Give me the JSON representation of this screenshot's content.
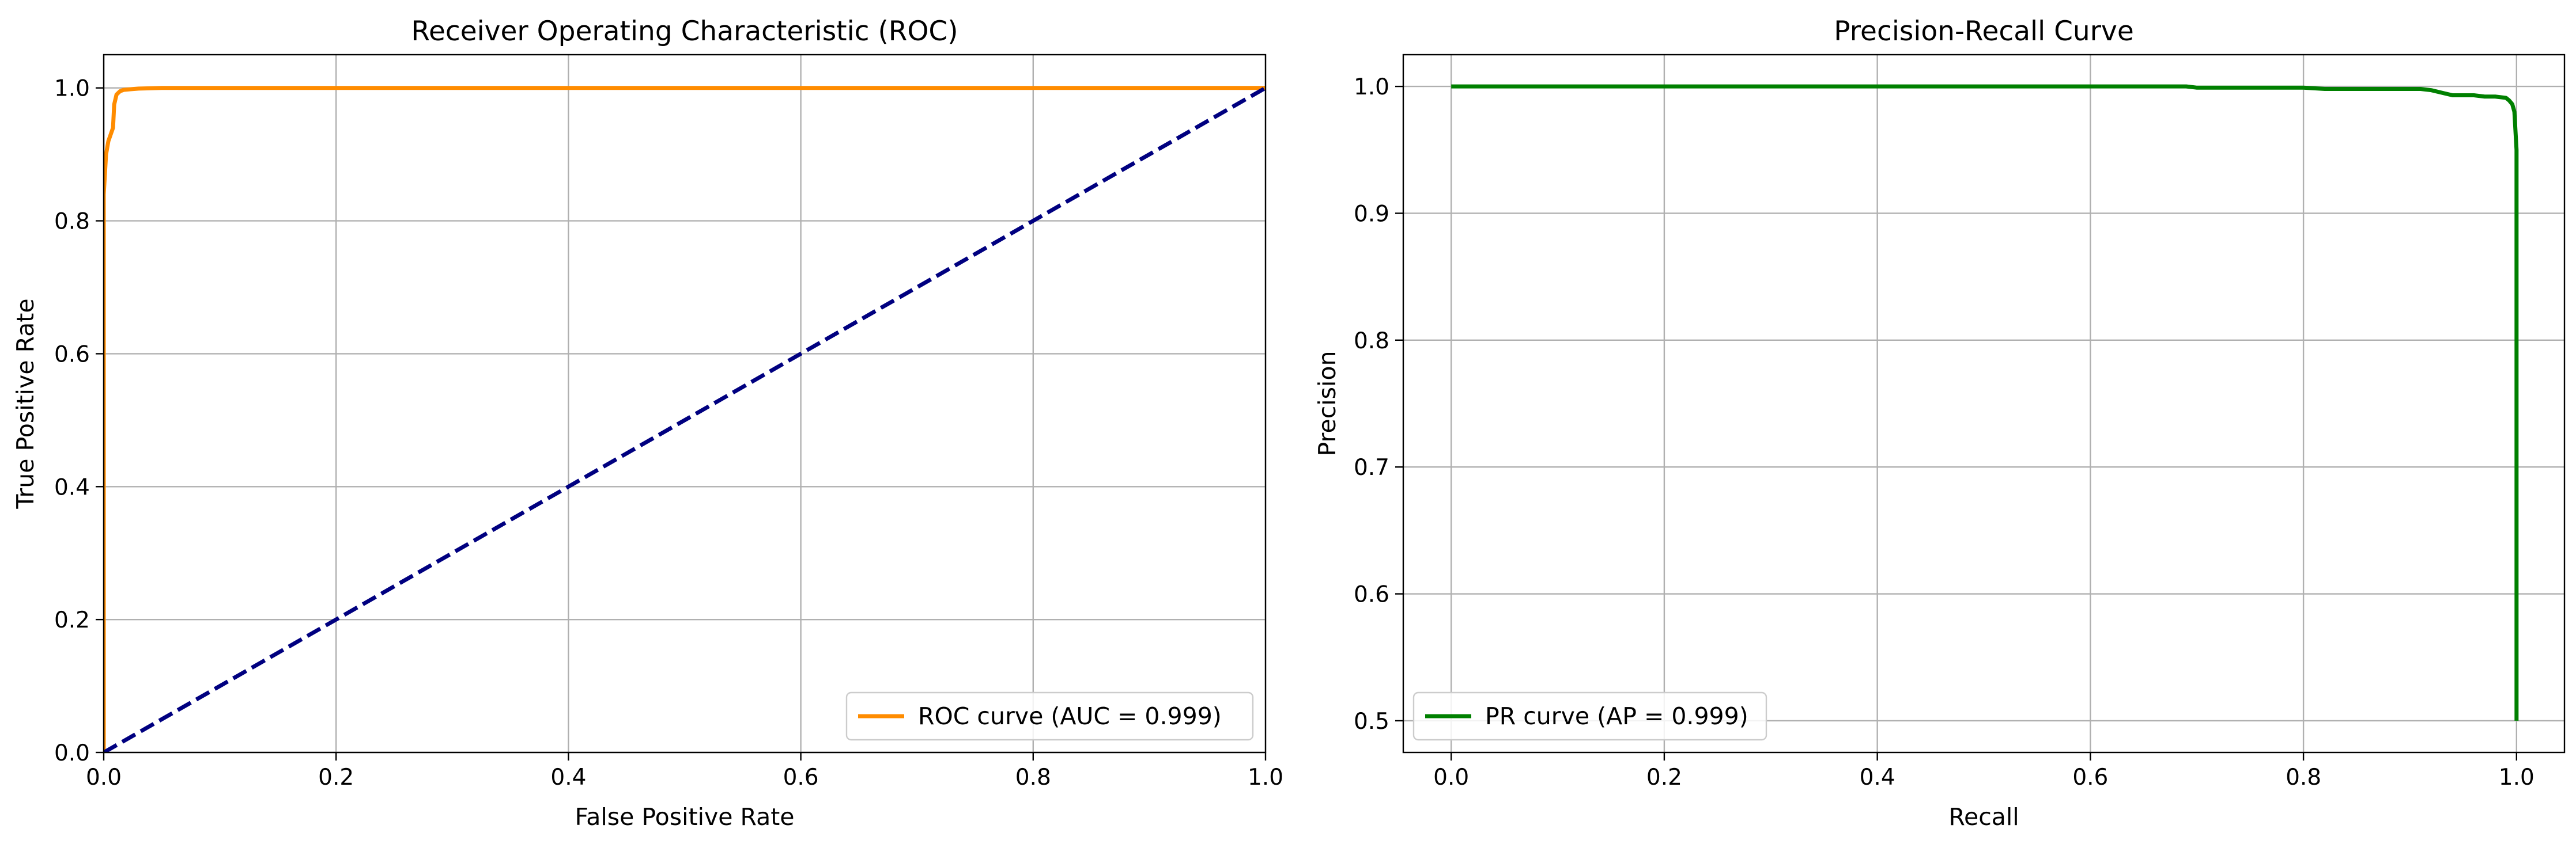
{
  "chart_data": [
    {
      "type": "line",
      "title": "Receiver Operating Characteristic (ROC)",
      "xlabel": "False Positive Rate",
      "ylabel": "True Positive Rate",
      "xlim": [
        0,
        1
      ],
      "ylim": [
        0,
        1.05
      ],
      "xticks": [
        0,
        0.2,
        0.4,
        0.6,
        0.8,
        1
      ],
      "xtick_labels": [
        "0.0",
        "0.2",
        "0.4",
        "0.6",
        "0.8",
        "1.0"
      ],
      "yticks": [
        0,
        0.2,
        0.4,
        0.6,
        0.8,
        1
      ],
      "ytick_labels": [
        "0.0",
        "0.2",
        "0.4",
        "0.6",
        "0.8",
        "1.0"
      ],
      "grid": true,
      "legend_position": "lower-right",
      "series": [
        {
          "name": "ROC curve (AUC = 0.999)",
          "color": "#ff8c00",
          "style": "solid",
          "x": [
            0,
            0,
            0.002,
            0.004,
            0.006,
            0.008,
            0.009,
            0.011,
            0.014,
            0.017,
            0.023,
            0.03,
            0.05,
            1
          ],
          "y": [
            0,
            0.84,
            0.9,
            0.92,
            0.93,
            0.94,
            0.975,
            0.99,
            0.995,
            0.997,
            0.998,
            0.999,
            1,
            1
          ]
        },
        {
          "name": "",
          "color": "#000080",
          "style": "dashed",
          "x": [
            0,
            1
          ],
          "y": [
            0,
            1
          ]
        }
      ]
    },
    {
      "type": "line",
      "title": "Precision-Recall Curve",
      "xlabel": "Recall",
      "ylabel": "Precision",
      "xlim": [
        -0.045,
        1.045
      ],
      "ylim": [
        0.475,
        1.025
      ],
      "xticks": [
        0,
        0.2,
        0.4,
        0.6,
        0.8,
        1
      ],
      "xtick_labels": [
        "0.0",
        "0.2",
        "0.4",
        "0.6",
        "0.8",
        "1.0"
      ],
      "yticks": [
        0.5,
        0.6,
        0.7,
        0.8,
        0.9,
        1
      ],
      "ytick_labels": [
        "0.5",
        "0.6",
        "0.7",
        "0.8",
        "0.9",
        "1.0"
      ],
      "grid": true,
      "legend_position": "lower-left",
      "series": [
        {
          "name": "PR curve (AP = 0.999)",
          "color": "#008000",
          "style": "solid",
          "x": [
            0,
            0.69,
            0.7,
            0.8,
            0.82,
            0.91,
            0.92,
            0.93,
            0.94,
            0.95,
            0.96,
            0.97,
            0.98,
            0.99,
            0.993,
            0.996,
            0.998,
            1,
            1,
            1
          ],
          "y": [
            1,
            1,
            0.999,
            0.999,
            0.998,
            0.998,
            0.997,
            0.995,
            0.993,
            0.993,
            0.993,
            0.992,
            0.992,
            0.991,
            0.989,
            0.986,
            0.98,
            0.95,
            0.7,
            0.5
          ]
        }
      ]
    }
  ]
}
